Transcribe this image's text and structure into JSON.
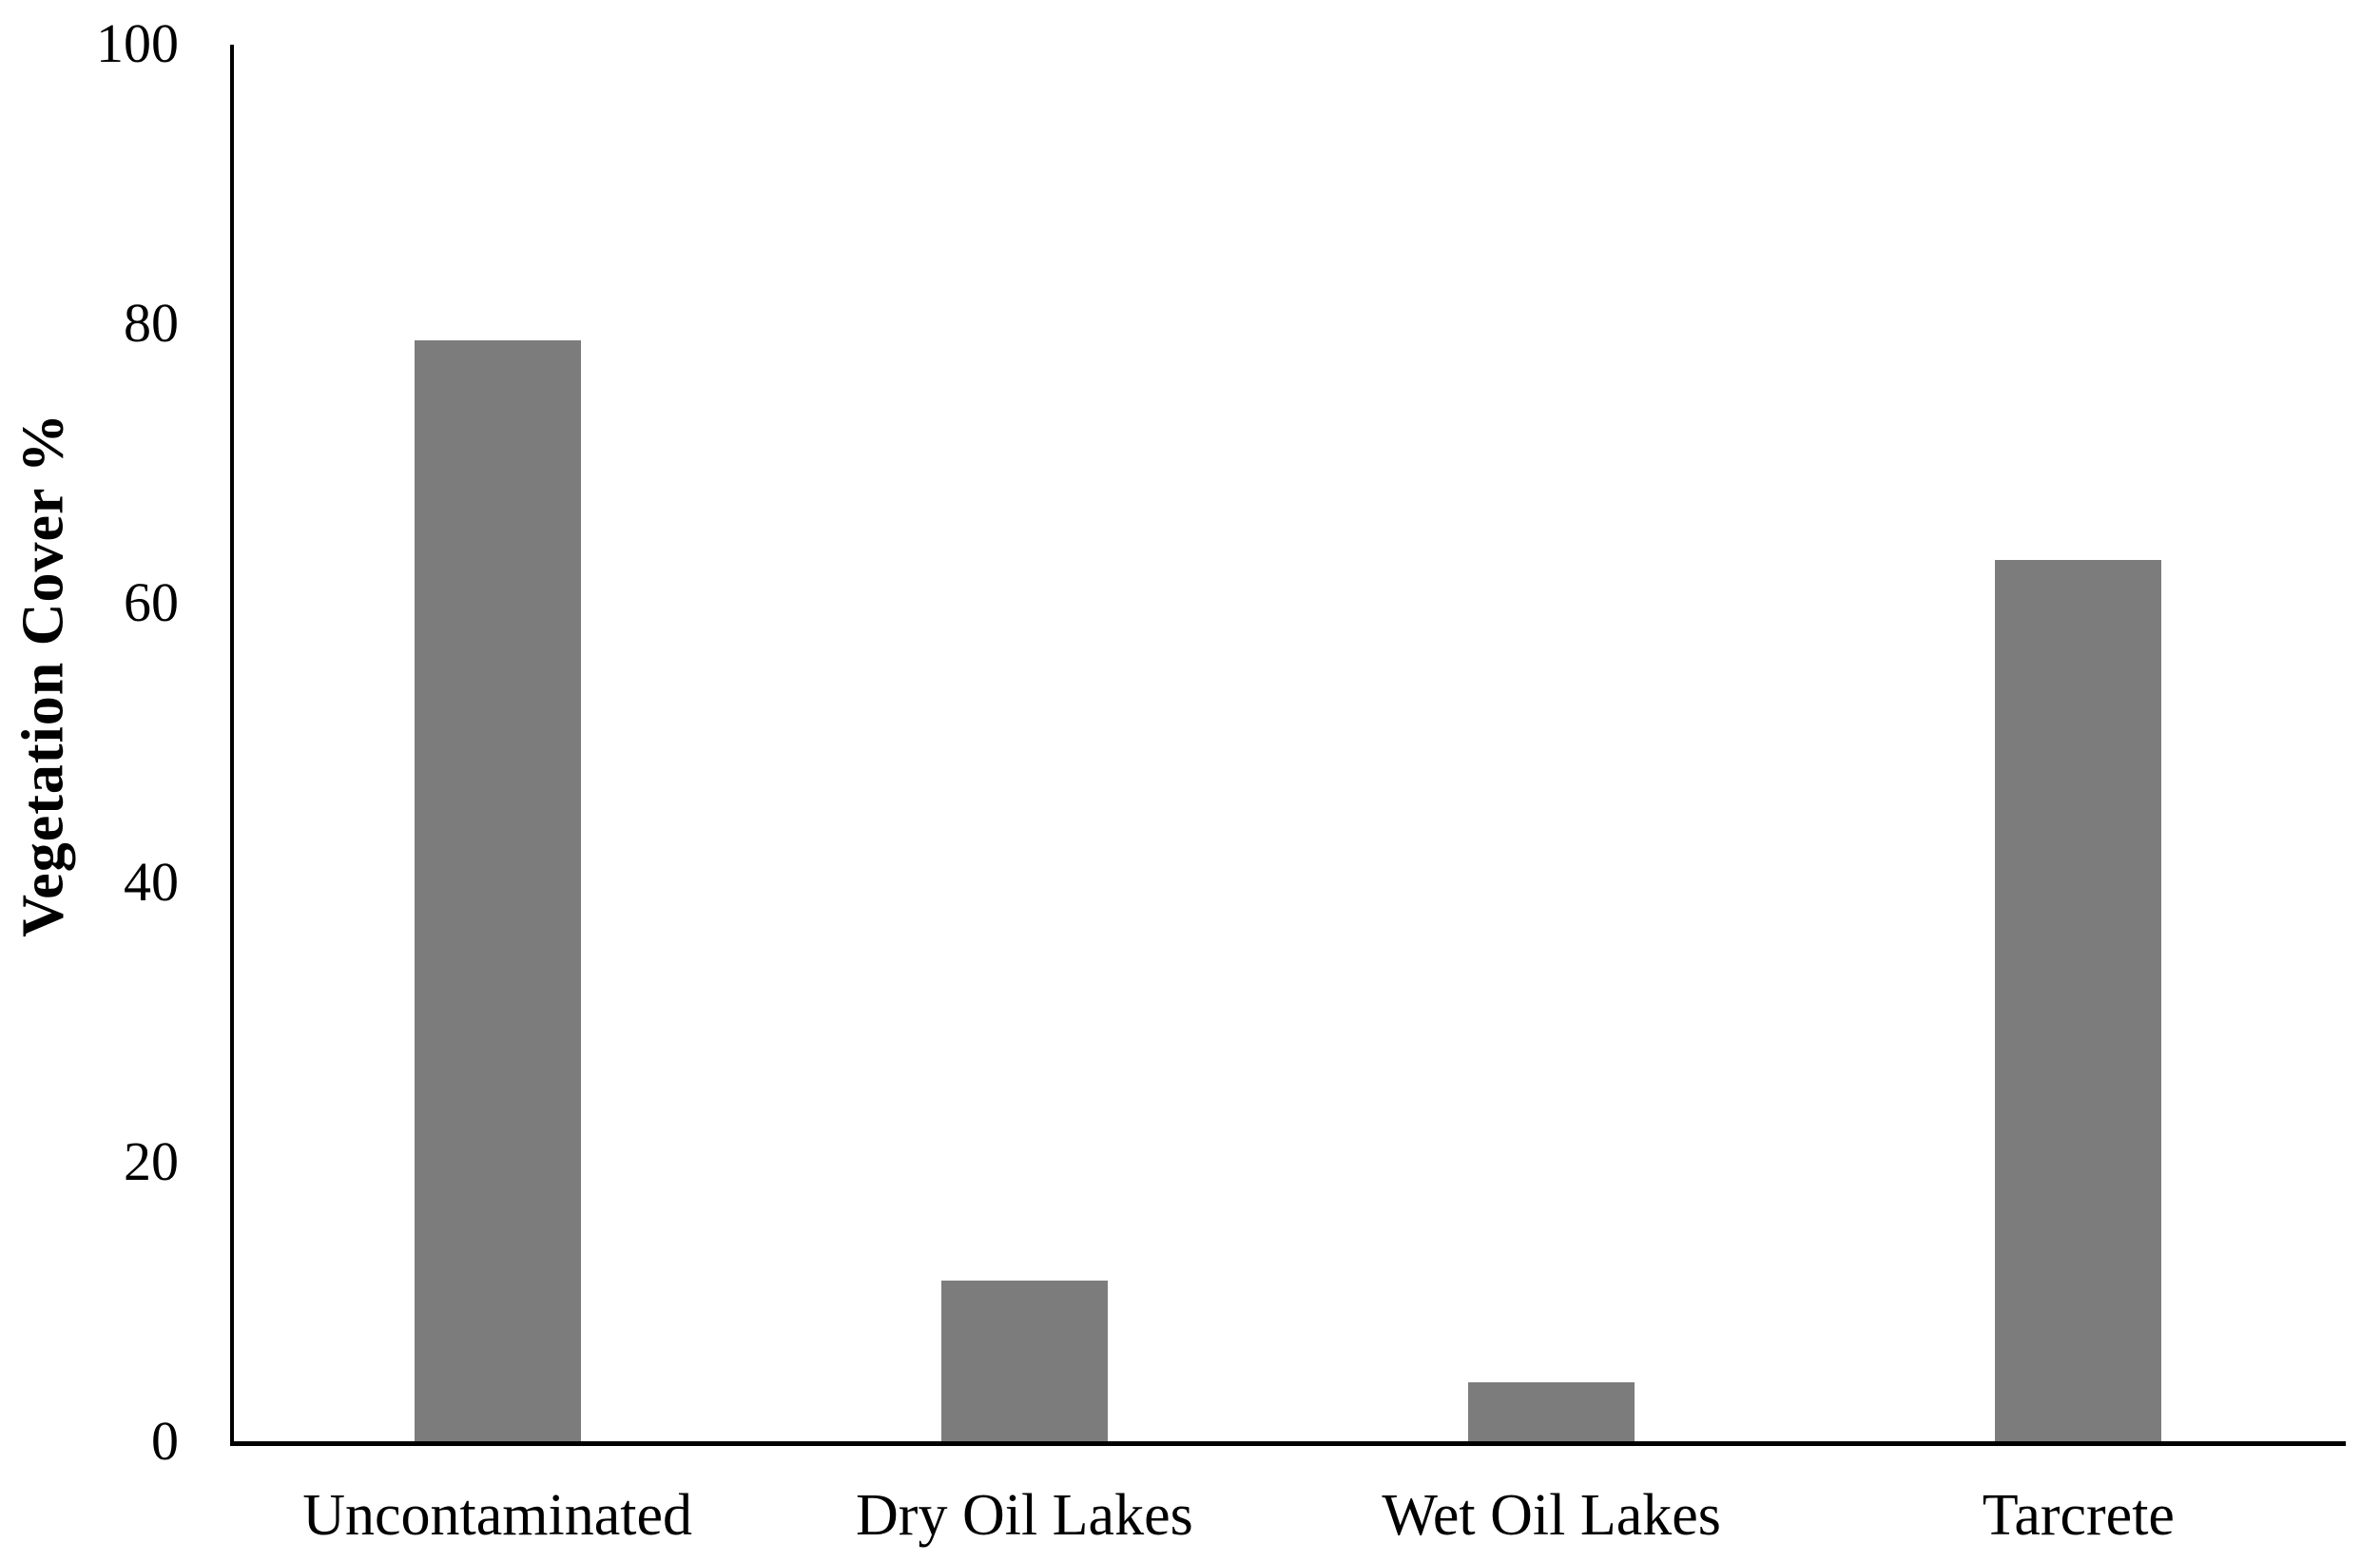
{
  "chart_data": {
    "type": "bar",
    "title": "",
    "xlabel": "",
    "ylabel": "Vegetation Cover %",
    "categories": [
      "Uncontaminated",
      "Dry Oil Lakes",
      "Wet Oil Lakes",
      "Tarcrete"
    ],
    "values": [
      78.8,
      11.5,
      4.2,
      63.1
    ],
    "ylim": [
      0,
      100
    ],
    "yticks": [
      100,
      80,
      60,
      40,
      20,
      0
    ],
    "bar_color": "#7c7c7c",
    "axis_color": "#000000",
    "background_color": "#ffffff",
    "grid": false,
    "legend": false,
    "tick_marks": false
  }
}
